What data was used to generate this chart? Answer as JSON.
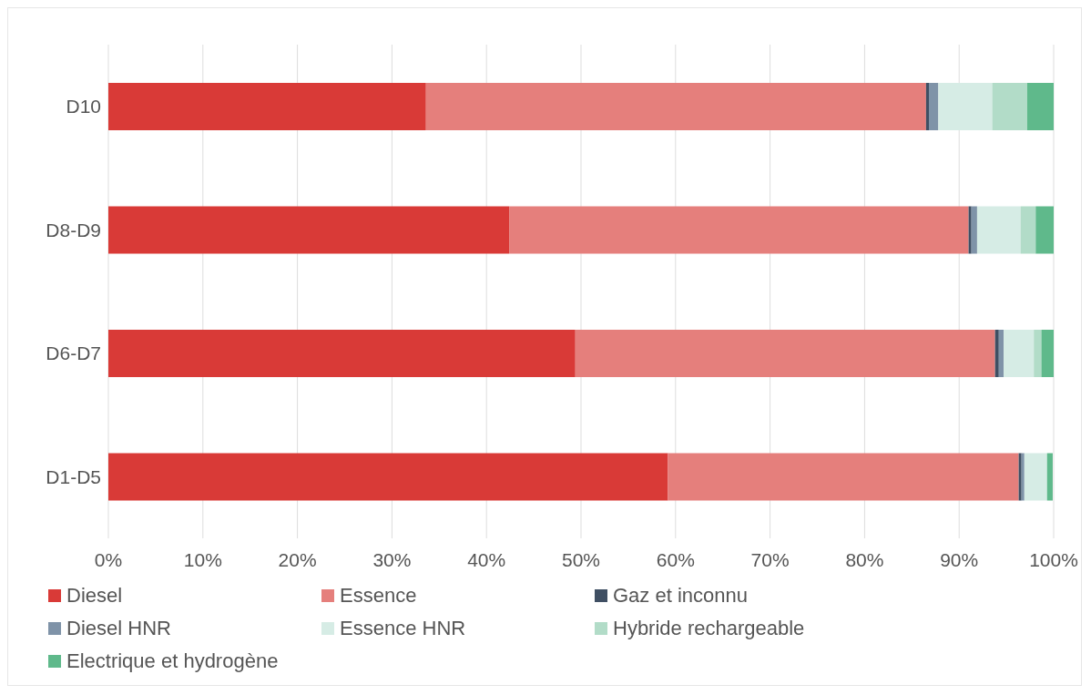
{
  "chart_data": {
    "type": "bar",
    "orientation": "horizontal",
    "stacked": true,
    "categories": [
      "D10",
      "D8-D9",
      "D6-D7",
      "D1-D5"
    ],
    "series": [
      {
        "name": "Diesel",
        "color": "#d93a37",
        "values": [
          33.6,
          42.4,
          49.4,
          59.2
        ]
      },
      {
        "name": "Essence",
        "color": "#e57f7c",
        "values": [
          52.9,
          48.6,
          44.4,
          37.1
        ]
      },
      {
        "name": "Gaz et inconnu",
        "color": "#3f4f63",
        "values": [
          0.3,
          0.3,
          0.4,
          0.3
        ]
      },
      {
        "name": "Diesel HNR",
        "color": "#7f93a8",
        "values": [
          1.0,
          0.6,
          0.5,
          0.3
        ]
      },
      {
        "name": "Essence HNR",
        "color": "#d6ece5",
        "values": [
          5.7,
          4.6,
          3.2,
          2.4
        ]
      },
      {
        "name": "Hybride rechargeable",
        "color": "#b2dcc8",
        "values": [
          3.7,
          1.6,
          0.8,
          null
        ]
      },
      {
        "name": "Electrique et hydrogène",
        "color": "#5fb98b",
        "values": [
          2.8,
          1.9,
          1.3,
          0.6
        ]
      }
    ],
    "xlim": [
      0,
      100
    ],
    "xticks": [
      {
        "value": 0,
        "label": "0%"
      },
      {
        "value": 10,
        "label": "10%"
      },
      {
        "value": 20,
        "label": "20%"
      },
      {
        "value": 30,
        "label": "30%"
      },
      {
        "value": 40,
        "label": "40%"
      },
      {
        "value": 50,
        "label": "50%"
      },
      {
        "value": 60,
        "label": "60%"
      },
      {
        "value": 70,
        "label": "70%"
      },
      {
        "value": 80,
        "label": "80%"
      },
      {
        "value": 90,
        "label": "90%"
      },
      {
        "value": 100,
        "label": "100%"
      }
    ],
    "grid": "x",
    "legend": "bottom"
  }
}
